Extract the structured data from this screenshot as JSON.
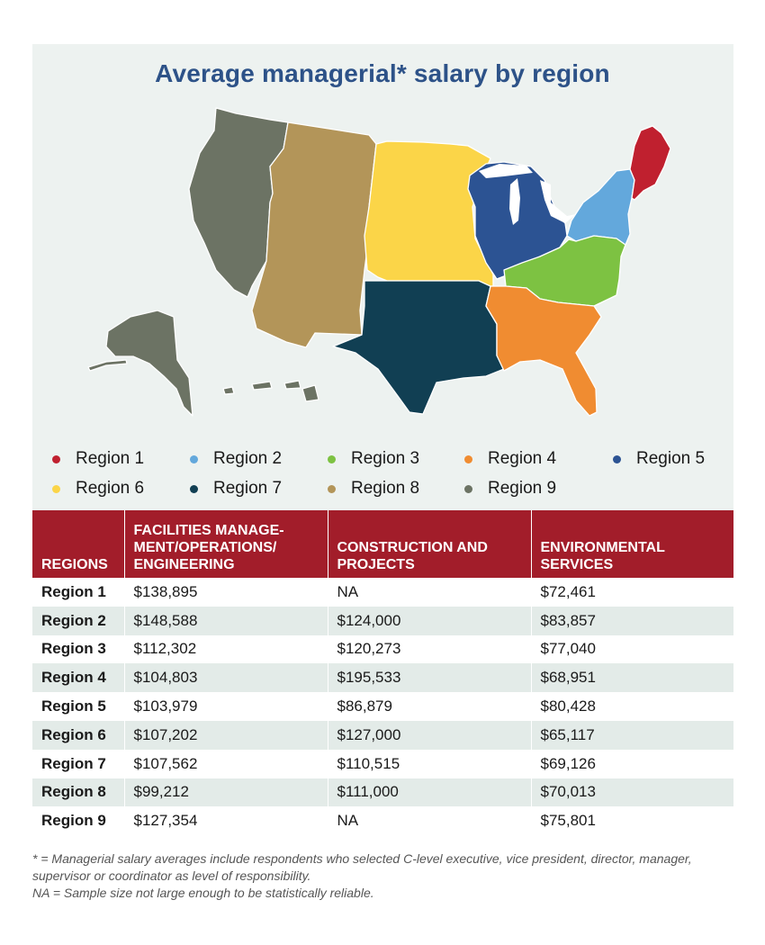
{
  "title": "Average managerial* salary by region",
  "colors": {
    "region1": "#c0202f",
    "region2": "#63a8dc",
    "region3": "#7dc242",
    "region4": "#f08c31",
    "region5": "#2c5393",
    "region6": "#fbd548",
    "region7": "#113f53",
    "region8": "#b39559",
    "region9": "#6c7364",
    "header": "#a21d2a",
    "title": "#2d5288"
  },
  "legend": [
    {
      "label": "Region 1",
      "color": "#c0202f"
    },
    {
      "label": "Region 2",
      "color": "#63a8dc"
    },
    {
      "label": "Region 3",
      "color": "#7dc242"
    },
    {
      "label": "Region 4",
      "color": "#f08c31"
    },
    {
      "label": "Region 5",
      "color": "#2c5393"
    },
    {
      "label": "Region 6",
      "color": "#fbd548"
    },
    {
      "label": "Region 7",
      "color": "#113f53"
    },
    {
      "label": "Region 8",
      "color": "#b39559"
    },
    {
      "label": "Region 9",
      "color": "#6c7364"
    }
  ],
  "table": {
    "headers": [
      "REGIONS",
      "FACILITIES MANAGE-\nMENT/OPERATIONS/\nENGINEERING",
      "CONSTRUCTION AND\nPROJECTS",
      "ENVIRONMENTAL\nSERVICES"
    ],
    "rows": [
      [
        "Region 1",
        "$138,895",
        "NA",
        "$72,461"
      ],
      [
        "Region 2",
        "$148,588",
        "$124,000",
        "$83,857"
      ],
      [
        "Region 3",
        "$112,302",
        "$120,273",
        "$77,040"
      ],
      [
        "Region 4",
        "$104,803",
        "$195,533",
        "$68,951"
      ],
      [
        "Region 5",
        "$103,979",
        "$86,879",
        "$80,428"
      ],
      [
        "Region 6",
        "$107,202",
        "$127,000",
        "$65,117"
      ],
      [
        "Region 7",
        "$107,562",
        "$110,515",
        "$69,126"
      ],
      [
        "Region 8",
        "$99,212",
        "$111,000",
        "$70,013"
      ],
      [
        "Region 9",
        "$127,354",
        "NA",
        "$75,801"
      ]
    ]
  },
  "footnotes": [
    "* = Managerial salary averages include respondents who selected C-level executive, vice president, director, manager, supervisor or coordinator as level of responsibility.",
    "NA = Sample size not large enough to be statistically reliable."
  ]
}
